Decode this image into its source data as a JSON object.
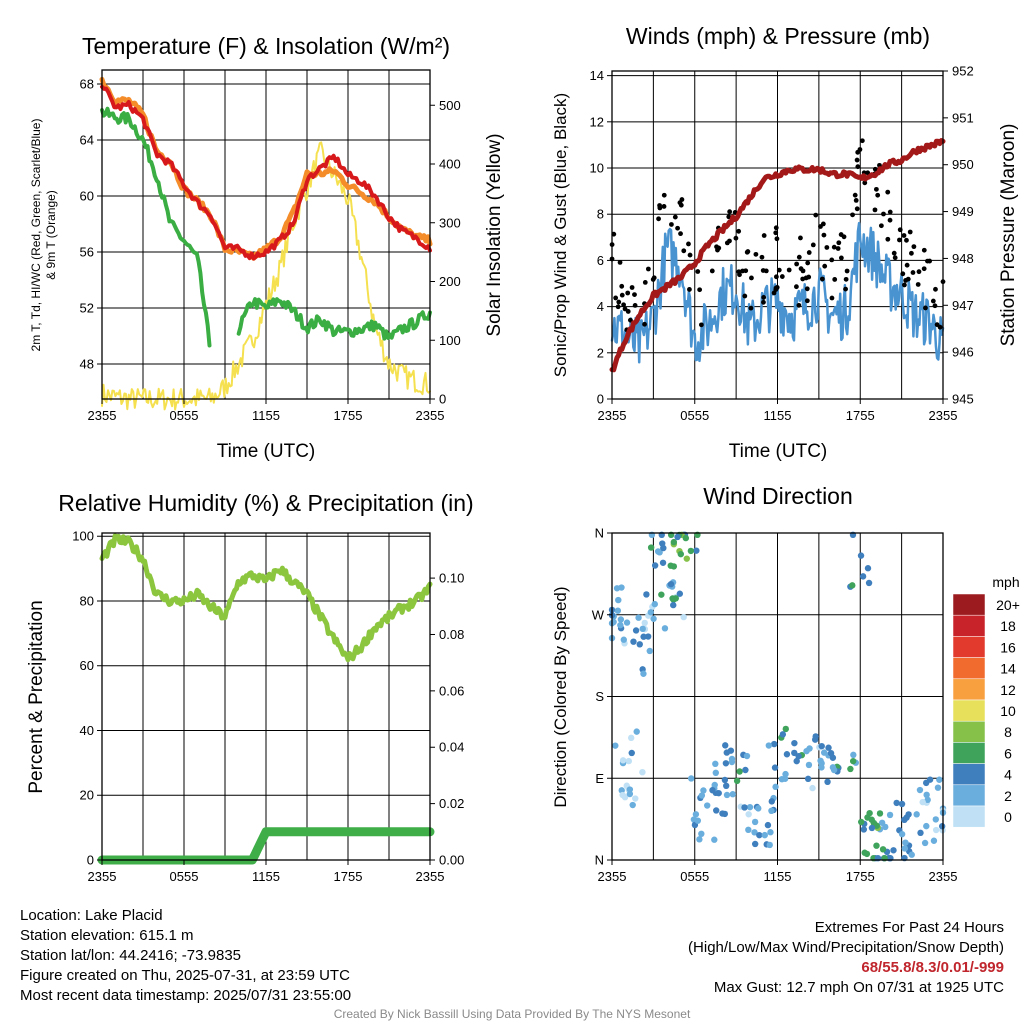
{
  "colors": {
    "red": "#d7191c",
    "orange": "#f48c2a",
    "green": "#3aad43",
    "yellow": "#f5e050",
    "blue": "#4a93d1",
    "black": "#000000",
    "maroon": "#a31919",
    "lightgreen": "#8cc63f",
    "precip": "#3fae49"
  },
  "panels": {
    "temperature": {
      "title": "Temperature (F) & Insolation (W/m²)",
      "ylabel_left": "2m T, Td, HI/WC (Red, Green, Scarlet/Blue) & 9m T (Orange)",
      "ylabel_right": "Solar Insolation (Yellow)",
      "xlabel": "Time (UTC)",
      "xticks": [
        "2355",
        "0555",
        "1155",
        "1755",
        "2355"
      ],
      "yticks_left": [
        "48",
        "52",
        "56",
        "60",
        "64",
        "68"
      ],
      "yticks_right": [
        "0",
        "100",
        "200",
        "300",
        "400",
        "500"
      ]
    },
    "winds": {
      "title": "Winds (mph) & Pressure (mb)",
      "ylabel_left": "Sonic/Prop Wind & Gust (Blue, Black)",
      "ylabel_right": "Station Pressure (Maroon)",
      "xlabel": "Time (UTC)",
      "xticks": [
        "2355",
        "0555",
        "1155",
        "1755",
        "2355"
      ],
      "yticks_left": [
        "0",
        "2",
        "4",
        "6",
        "8",
        "10",
        "12",
        "14"
      ],
      "yticks_right": [
        "945",
        "946",
        "947",
        "948",
        "949",
        "950",
        "951",
        "952"
      ]
    },
    "humidity": {
      "title": "Relative Humidity (%) & Precipitation (in)",
      "ylabel_left": "Percent & Precipitation",
      "xticks": [
        "2355",
        "0555",
        "1155",
        "1755",
        "2355"
      ],
      "yticks_left": [
        "0",
        "20",
        "40",
        "60",
        "80",
        "100"
      ],
      "yticks_right": [
        "0.00",
        "0.02",
        "0.04",
        "0.06",
        "0.08",
        "0.10"
      ]
    },
    "direction": {
      "title": "Wind Direction",
      "ylabel_left": "Direction (Colored By Speed)",
      "xticks": [
        "2355",
        "0555",
        "1155",
        "1755",
        "2355"
      ],
      "yticks_left": [
        "N",
        "E",
        "S",
        "W",
        "N"
      ],
      "legend_title": "mph",
      "legend_labels": [
        "20+",
        "18",
        "16",
        "14",
        "12",
        "10",
        "8",
        "6",
        "4",
        "2",
        "0"
      ],
      "legend_colors": [
        "#9b1b1e",
        "#c8232b",
        "#e23b2e",
        "#f26b2e",
        "#f8a040",
        "#e6e05a",
        "#86c14a",
        "#3fa35c",
        "#3f7fbd",
        "#6aaede",
        "#bfe0f5"
      ]
    }
  },
  "chart_data": [
    {
      "type": "line",
      "title": "Temperature (F) & Insolation (W/m²)",
      "xlabel": "Time (UTC)",
      "ylabel": "2m T, Td, HI/WC (Red, Green, Scarlet/Blue) & 9m T (Orange)",
      "ylabel_right": "Solar Insolation (Yellow)",
      "x_hours": [
        0,
        1,
        2,
        3,
        4,
        5,
        6,
        7,
        8,
        9,
        10,
        11,
        12,
        13,
        14,
        15,
        16,
        17,
        18,
        19,
        20,
        21,
        22,
        23,
        24
      ],
      "ylim": [
        45.5,
        69
      ],
      "ylim_right": [
        0,
        560
      ],
      "series": [
        {
          "name": "2m T (Red)",
          "values": [
            68,
            66.3,
            66.5,
            65.5,
            63,
            62.3,
            60.8,
            59.5,
            58.6,
            56.3,
            56.2,
            55.7,
            56,
            56.8,
            58,
            61.2,
            62,
            62.8,
            61.5,
            61,
            60,
            58.5,
            57.5,
            57,
            56.3
          ]
        },
        {
          "name": "9m T (Orange)",
          "values": [
            68.3,
            66.8,
            66.8,
            65.8,
            63.2,
            62.5,
            60.5,
            59.6,
            58.6,
            56.2,
            56,
            55.6,
            56.2,
            57,
            58.8,
            61.6,
            61.6,
            61.8,
            60.8,
            60.2,
            59.6,
            58.5,
            57.6,
            57.1,
            56.8
          ]
        },
        {
          "name": "Td (Green)",
          "values": [
            66,
            65.6,
            65.5,
            64,
            61.5,
            58,
            56.8,
            55.5,
            48.5,
            null,
            50.5,
            52.5,
            52,
            52.6,
            51.8,
            50.6,
            51.2,
            50.3,
            50.3,
            50.5,
            50.8,
            49.8,
            50.5,
            51,
            51.7
          ]
        },
        {
          "name": "Solar Insolation (Yellow)",
          "axis": "right",
          "values": [
            8,
            3,
            0,
            0,
            0,
            0,
            0,
            0,
            0,
            20,
            60,
            100,
            160,
            220,
            300,
            360,
            420,
            380,
            340,
            240,
            120,
            60,
            40,
            30,
            25
          ]
        }
      ]
    },
    {
      "type": "line",
      "title": "Winds (mph) & Pressure (mb)",
      "xlabel": "Time (UTC)",
      "ylabel": "Sonic/Prop Wind & Gust (Blue, Black)",
      "ylabel_right": "Station Pressure (Maroon)",
      "x_hours": [
        0,
        1,
        2,
        3,
        4,
        5,
        6,
        7,
        8,
        9,
        10,
        11,
        12,
        13,
        14,
        15,
        16,
        17,
        18,
        19,
        20,
        21,
        22,
        23,
        24
      ],
      "ylim": [
        0,
        14.2
      ],
      "ylim_right": [
        945,
        952
      ],
      "series": [
        {
          "name": "Sonic/Prop Wind (Blue)",
          "values": [
            3.2,
            2.8,
            2.2,
            3.5,
            6.5,
            5.8,
            2.5,
            3.2,
            4.6,
            4.8,
            3.0,
            4.0,
            4.2,
            3.6,
            4.0,
            4.6,
            3.6,
            3.8,
            7.0,
            6.2,
            5.0,
            4.6,
            3.6,
            3.4,
            2.3
          ]
        },
        {
          "name": "Gust (Black)",
          "values": [
            6.0,
            4.0,
            3.2,
            5.5,
            8.8,
            7.5,
            4.2,
            5.0,
            7.6,
            6.8,
            4.6,
            5.6,
            6.2,
            5.6,
            5.5,
            7.0,
            5.6,
            6.0,
            10.4,
            9.2,
            7.8,
            6.6,
            5.4,
            4.8,
            3.6
          ]
        },
        {
          "name": "Station Pressure (Maroon)",
          "axis": "right",
          "values": [
            945.6,
            946.3,
            946.8,
            947.2,
            947.4,
            947.6,
            947.9,
            948.3,
            948.6,
            948.9,
            949.3,
            949.7,
            949.8,
            949.9,
            949.9,
            949.9,
            949.8,
            949.8,
            949.7,
            949.8,
            950.0,
            950.1,
            950.3,
            950.4,
            950.5
          ]
        }
      ]
    },
    {
      "type": "line",
      "title": "Relative Humidity (%) & Precipitation (in)",
      "ylabel": "Percent & Precipitation",
      "x_hours": [
        0,
        1,
        2,
        3,
        4,
        5,
        6,
        7,
        8,
        9,
        10,
        11,
        12,
        13,
        14,
        15,
        16,
        17,
        18,
        19,
        20,
        21,
        22,
        23,
        24
      ],
      "ylim": [
        0,
        101
      ],
      "ylim_right": [
        0,
        0.116
      ],
      "series": [
        {
          "name": "Relative Humidity (Light Green)",
          "values": [
            93,
            99,
            98,
            93,
            82,
            80,
            80,
            82,
            78,
            75,
            86,
            88,
            86,
            90,
            86,
            82,
            75,
            68,
            62,
            66,
            72,
            75,
            78,
            80,
            84
          ]
        },
        {
          "name": "Precipitation (Green)",
          "axis": "right",
          "values": [
            0,
            0,
            0,
            0,
            0,
            0,
            0,
            0,
            0,
            0,
            0,
            0,
            0.01,
            0.01,
            0.01,
            0.01,
            0.01,
            0.01,
            0.01,
            0.01,
            0.01,
            0.01,
            0.01,
            0.01,
            0.01
          ]
        }
      ]
    },
    {
      "type": "scatter",
      "title": "Wind Direction",
      "ylabel": "Direction (Colored By Speed)",
      "y_categories": [
        "N",
        "E",
        "S",
        "W",
        "N"
      ],
      "x_hours": [
        0,
        0.5,
        1,
        1.5,
        2,
        2.5,
        3,
        3.5,
        4,
        4.5,
        5,
        5.5,
        6,
        7,
        8,
        9,
        10,
        11,
        12,
        13,
        14,
        15,
        16,
        17,
        18,
        18.5,
        19,
        19.5,
        20,
        21,
        22,
        23,
        24
      ],
      "direction_deg": [
        270,
        250,
        130,
        90,
        230,
        260,
        320,
        340,
        300,
        280,
        350,
        345,
        60,
        50,
        80,
        100,
        60,
        40,
        110,
        115,
        110,
        100,
        105,
        120,
        330,
        30,
        25,
        15,
        20,
        40,
        30,
        60,
        50
      ],
      "speed_mph": [
        3,
        2,
        2,
        1,
        3,
        2,
        4,
        3,
        6,
        2,
        6,
        6,
        2,
        3,
        3,
        4,
        2,
        3,
        3,
        4,
        3,
        2,
        4,
        4,
        4,
        5,
        6,
        4,
        3,
        3,
        3,
        2,
        2
      ]
    }
  ],
  "info": {
    "location": "Location: Lake Placid",
    "elevation": "Station elevation: 615.1 m",
    "latlon": "Station lat/lon: 44.2416; -73.9835",
    "created": "Figure created on Thu, 2025-07-31, at 23:59 UTC",
    "timestamp": "Most recent data timestamp: 2025/07/31 23:55:00",
    "extremes_title": "Extremes For Past 24 Hours",
    "extremes_subtitle": "(High/Low/Max Wind/Precipitation/Snow Depth)",
    "extremes_values": "68/55.8/8.3/0.01/-999",
    "max_gust": "Max Gust: 12.7 mph On 07/31 at 1925 UTC",
    "credit": "Created By Nick Bassill Using Data Provided By The NYS Mesonet"
  }
}
